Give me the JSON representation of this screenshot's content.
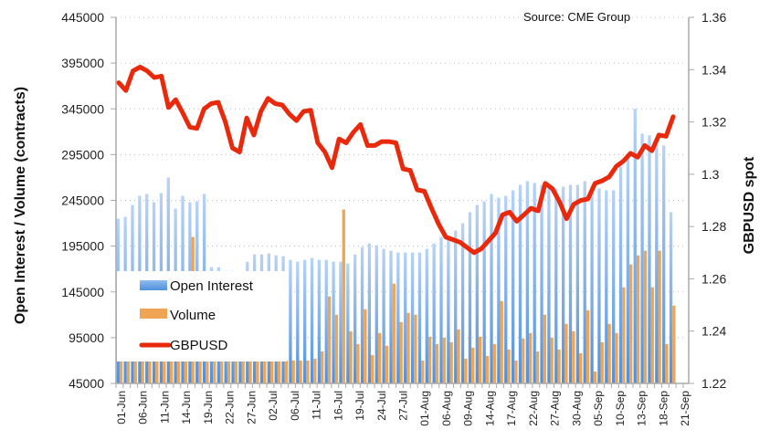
{
  "chart_data": {
    "type": "bar",
    "title": "",
    "source_note": "Source: CME Group",
    "ylabel_left": "Open Interest / Volume (contracts)",
    "ylabel_right": "GBPUSD spot",
    "ylim_left": [
      45000,
      445000
    ],
    "yticks_left": [
      "445000",
      "395000",
      "345000",
      "295000",
      "245000",
      "195000",
      "145000",
      "95000",
      "45000"
    ],
    "ylim_right": [
      1.22,
      1.36
    ],
    "yticks_right": [
      "1.36",
      "1.34",
      "1.32",
      "1.3",
      "1.28",
      "1.26",
      "1.24",
      "1.22"
    ],
    "grid": true,
    "legend_position": "lower-left",
    "x_tick_labels": [
      "01-Jun",
      "06-Jun",
      "11-Jun",
      "14-Jun",
      "19-Jun",
      "22-Jun",
      "27-Jun",
      "02-Jul",
      "06-Jul",
      "11-Jul",
      "16-Jul",
      "19-Jul",
      "24-Jul",
      "27-Jul",
      "01-Aug",
      "06-Aug",
      "09-Aug",
      "14-Aug",
      "17-Aug",
      "22-Aug",
      "27-Aug",
      "30-Aug",
      "05-Sep",
      "10-Sep",
      "13-Sep",
      "18-Sep",
      "21-Sep"
    ],
    "series": [
      {
        "name": "Open Interest",
        "kind": "bar",
        "color": "#6fa8e8",
        "values": [
          225000,
          227000,
          240000,
          250000,
          252000,
          243000,
          253000,
          270000,
          236000,
          250000,
          243000,
          244000,
          252000,
          172000,
          172000,
          168000,
          168000,
          167000,
          178000,
          186000,
          186000,
          187000,
          185000,
          184000,
          180000,
          178000,
          180000,
          182000,
          180000,
          180000,
          178000,
          178000,
          176000,
          186000,
          194000,
          198000,
          196000,
          192000,
          190000,
          188000,
          188000,
          188000,
          188000,
          192000,
          198000,
          205000,
          204000,
          212000,
          220000,
          232000,
          240000,
          244000,
          252000,
          248000,
          250000,
          256000,
          262000,
          266000,
          264000,
          262000,
          258000,
          258000,
          260000,
          262000,
          262000,
          266000,
          260000,
          258000,
          256000,
          256000,
          282000,
          296000,
          345000,
          318000,
          316000,
          306000,
          305000,
          232000,
          0
        ],
        "axis": "left"
      },
      {
        "name": "Volume",
        "kind": "bar",
        "color": "#f0a555",
        "values": [
          70000,
          70000,
          70000,
          70000,
          70000,
          70000,
          70000,
          70000,
          120000,
          155000,
          205000,
          72000,
          70000,
          70000,
          70000,
          70000,
          70000,
          70000,
          70000,
          70000,
          70000,
          70000,
          70000,
          70000,
          70000,
          70000,
          70000,
          72000,
          80000,
          140000,
          120000,
          235000,
          102000,
          88000,
          126000,
          76000,
          100000,
          86000,
          154000,
          112000,
          122000,
          120000,
          70000,
          96000,
          88000,
          95000,
          90000,
          104000,
          72000,
          84000,
          96000,
          75000,
          88000,
          135000,
          82000,
          70000,
          94000,
          100000,
          80000,
          120000,
          95000,
          82000,
          110000,
          102000,
          78000,
          125000,
          58000,
          90000,
          110000,
          100000,
          150000,
          175000,
          185000,
          190000,
          150000,
          190000,
          88000,
          130000,
          0
        ],
        "axis": "left"
      },
      {
        "name": "GBPUSD",
        "kind": "line",
        "color": "#e8290b",
        "values": [
          1.335,
          1.332,
          1.3395,
          1.341,
          1.3395,
          1.337,
          1.3375,
          1.3255,
          1.3285,
          1.3235,
          1.318,
          1.3175,
          1.325,
          1.327,
          1.3275,
          1.32,
          1.31,
          1.3085,
          1.3215,
          1.315,
          1.324,
          1.329,
          1.327,
          1.3265,
          1.323,
          1.3205,
          1.324,
          1.3245,
          1.312,
          1.3085,
          1.3025,
          1.3135,
          1.312,
          1.316,
          1.319,
          1.311,
          1.311,
          1.3125,
          1.3125,
          1.312,
          1.302,
          1.3015,
          1.294,
          1.2935,
          1.287,
          1.281,
          1.276,
          1.275,
          1.274,
          1.272,
          1.27,
          1.2715,
          1.2745,
          1.2775,
          1.2845,
          1.2855,
          1.282,
          1.2845,
          1.287,
          1.286,
          1.2965,
          1.2945,
          1.2895,
          1.283,
          1.2885,
          1.29,
          1.2905,
          1.2965,
          1.2975,
          1.299,
          1.303,
          1.305,
          1.308,
          1.3065,
          1.311,
          1.309,
          1.315,
          1.3145,
          1.322
        ]
      }
    ]
  },
  "legend": {
    "items": [
      {
        "label": "Open Interest",
        "color": "#6fa8e8"
      },
      {
        "label": "Volume",
        "color": "#f0a555"
      },
      {
        "label": "GBPUSD",
        "color": "#e8290b"
      }
    ]
  }
}
